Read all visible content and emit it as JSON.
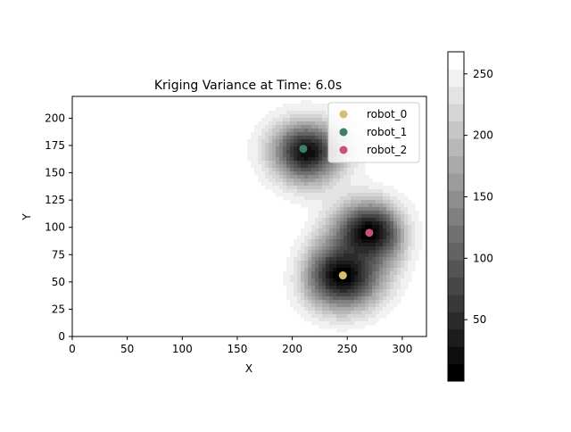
{
  "chart_data": {
    "type": "contour",
    "title": "Kriging Variance at Time: 6.0s",
    "xlabel": "X",
    "ylabel": "Y",
    "xlim": [
      0,
      322
    ],
    "ylim": [
      0,
      220
    ],
    "xticks": [
      0,
      50,
      100,
      150,
      200,
      250,
      300
    ],
    "yticks": [
      0,
      25,
      50,
      75,
      100,
      125,
      150,
      175,
      200
    ],
    "colormap": "gray",
    "colorbar": {
      "range": [
        0,
        268
      ],
      "levels": 19,
      "ticks": [
        50,
        100,
        150,
        200,
        250
      ]
    },
    "legend_position": "top-right",
    "series": [
      {
        "name": "robot_0",
        "x": 246,
        "y": 56,
        "color": "#d4bf6a"
      },
      {
        "name": "robot_1",
        "x": 210,
        "y": 172,
        "color": "#3e7f67"
      },
      {
        "name": "robot_2",
        "x": 270,
        "y": 95,
        "color": "#c9507c"
      }
    ]
  }
}
